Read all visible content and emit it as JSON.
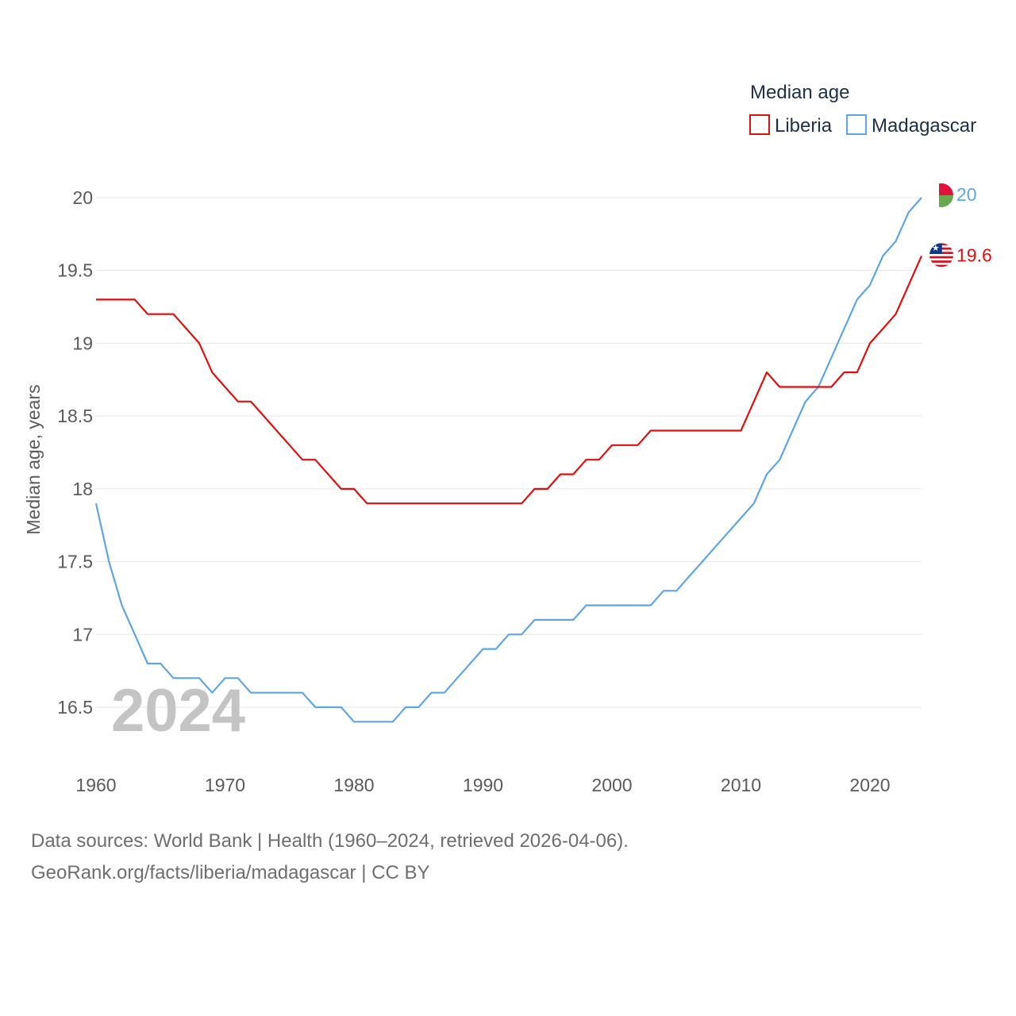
{
  "chart_data": {
    "type": "line",
    "legend_title": "Median age",
    "ylabel": "Median age, years",
    "xlabel": "",
    "ylim": [
      16,
      20
    ],
    "xlim": [
      1960,
      2024
    ],
    "y_ticks": [
      16.5,
      17,
      17.5,
      18,
      18.5,
      19,
      19.5,
      20
    ],
    "x_ticks": [
      1960,
      1970,
      1980,
      1990,
      2000,
      2010,
      2020
    ],
    "grid": true,
    "legend_position": "top-right",
    "year_overlay": "2024",
    "x": [
      1960,
      1961,
      1962,
      1963,
      1964,
      1965,
      1966,
      1967,
      1968,
      1969,
      1970,
      1971,
      1972,
      1973,
      1974,
      1975,
      1976,
      1977,
      1978,
      1979,
      1980,
      1981,
      1982,
      1983,
      1984,
      1985,
      1986,
      1987,
      1988,
      1989,
      1990,
      1991,
      1992,
      1993,
      1994,
      1995,
      1996,
      1997,
      1998,
      1999,
      2000,
      2001,
      2002,
      2003,
      2004,
      2005,
      2006,
      2007,
      2008,
      2009,
      2010,
      2011,
      2012,
      2013,
      2014,
      2015,
      2016,
      2017,
      2018,
      2019,
      2020,
      2021,
      2022,
      2023,
      2024
    ],
    "series": [
      {
        "name": "Liberia",
        "color": "#e10e0e",
        "end_label": "19.6",
        "flag": "liberia-flag",
        "values": [
          19.3,
          19.3,
          19.3,
          19.3,
          19.2,
          19.2,
          19.2,
          19.1,
          19.0,
          18.8,
          18.7,
          18.6,
          18.6,
          18.5,
          18.4,
          18.3,
          18.2,
          18.2,
          18.1,
          18.0,
          18.0,
          17.9,
          17.9,
          17.9,
          17.9,
          17.9,
          17.9,
          17.9,
          17.9,
          17.9,
          17.9,
          17.9,
          17.9,
          17.9,
          18.0,
          18.0,
          18.1,
          18.1,
          18.2,
          18.2,
          18.3,
          18.3,
          18.3,
          18.4,
          18.4,
          18.4,
          18.4,
          18.4,
          18.4,
          18.4,
          18.4,
          18.6,
          18.8,
          18.7,
          18.7,
          18.7,
          18.7,
          18.7,
          18.8,
          18.8,
          19.0,
          19.1,
          19.2,
          19.4,
          19.6
        ]
      },
      {
        "name": "Madagascar",
        "color": "#5ea5e6",
        "end_label": "20",
        "flag": "madagascar-flag",
        "values": [
          17.9,
          17.5,
          17.2,
          17.0,
          16.8,
          16.8,
          16.7,
          16.7,
          16.7,
          16.6,
          16.7,
          16.7,
          16.6,
          16.6,
          16.6,
          16.6,
          16.6,
          16.5,
          16.5,
          16.5,
          16.4,
          16.4,
          16.4,
          16.4,
          16.5,
          16.5,
          16.6,
          16.6,
          16.7,
          16.8,
          16.9,
          16.9,
          17.0,
          17.0,
          17.1,
          17.1,
          17.1,
          17.1,
          17.2,
          17.2,
          17.2,
          17.2,
          17.2,
          17.2,
          17.3,
          17.3,
          17.4,
          17.5,
          17.6,
          17.7,
          17.8,
          17.9,
          18.1,
          18.2,
          18.4,
          18.6,
          18.7,
          18.9,
          19.1,
          19.3,
          19.4,
          19.6,
          19.7,
          19.9,
          20.0
        ]
      }
    ]
  },
  "footer": {
    "line1": "Data sources: World Bank | Health (1960–2024, retrieved 2026-04-06).",
    "line2": "GeoRank.org/facts/liberia/madagascar | CC BY"
  }
}
